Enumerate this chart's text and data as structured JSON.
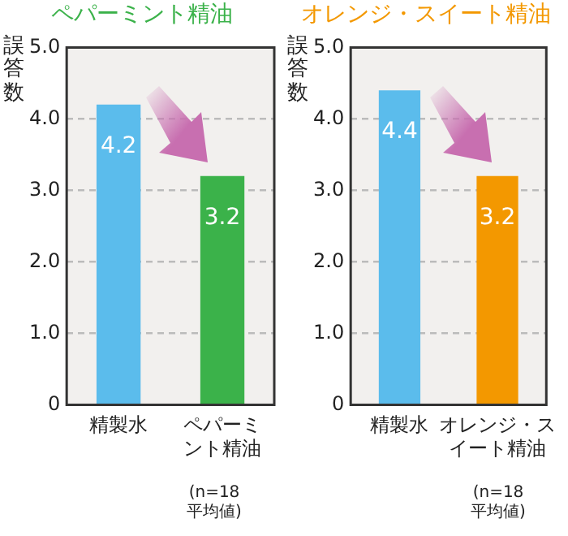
{
  "chart_data": [
    {
      "type": "bar",
      "title": "ペパーミント精油",
      "ylabel": "誤答数",
      "categories": [
        "精製水",
        "ペパーミント精油"
      ],
      "values": [
        4.2,
        3.2
      ],
      "colors": [
        "#5bbcec",
        "#3bb24a"
      ],
      "ylim": [
        0,
        5
      ],
      "yticks": [
        0,
        {
          "value": 1,
          "label": "1.0"
        },
        {
          "value": 2,
          "label": "2.0"
        },
        {
          "value": 3,
          "label": "3.0"
        },
        {
          "value": 4,
          "label": "4.0"
        },
        {
          "value": 5,
          "label": "5.0"
        }
      ],
      "grid": "y",
      "data_labels": true,
      "annotations": [
        "(n=18\n平均値)"
      ]
    },
    {
      "type": "bar",
      "title": "オレンジ・スイート精油",
      "ylabel": "誤答数",
      "categories": [
        "精製水",
        "オレンジ・スイート精油"
      ],
      "values": [
        4.4,
        3.2
      ],
      "colors": [
        "#5bbcec",
        "#f39800"
      ],
      "ylim": [
        0,
        5
      ],
      "yticks": [
        0,
        {
          "value": 1,
          "label": "1.0"
        },
        {
          "value": 2,
          "label": "2.0"
        },
        {
          "value": 3,
          "label": "3.0"
        },
        {
          "value": 4,
          "label": "4.0"
        },
        {
          "value": 5,
          "label": "5.0"
        }
      ],
      "grid": "y",
      "data_labels": true,
      "annotations": [
        "(n=18\n平均値)"
      ]
    }
  ]
}
